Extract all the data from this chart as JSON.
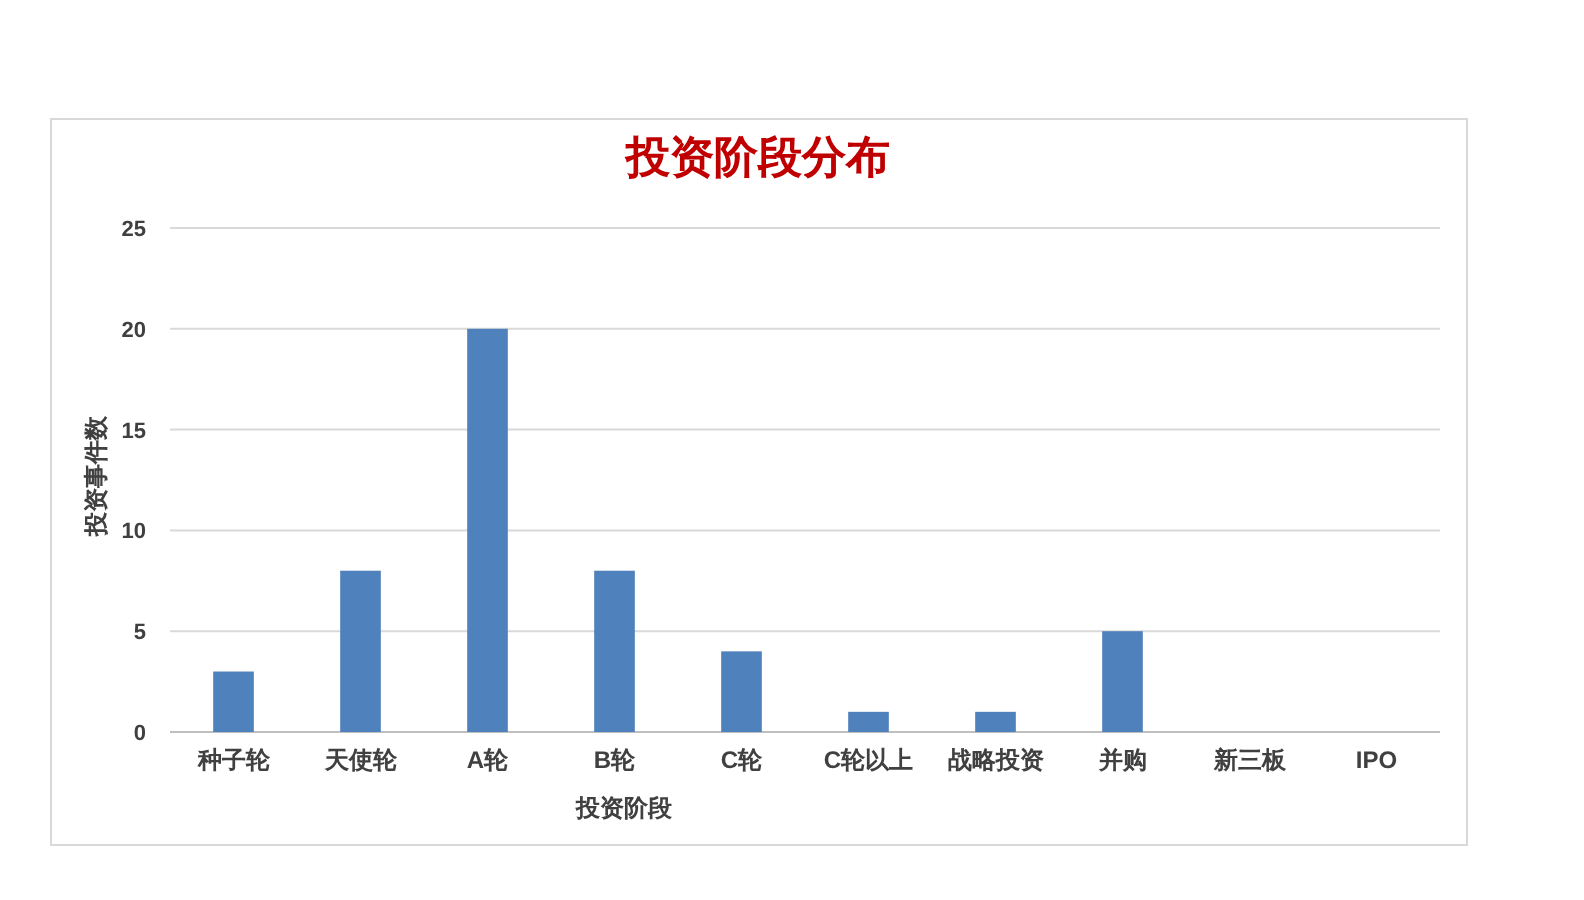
{
  "chart_data": {
    "type": "bar",
    "title": "投资阶段分布",
    "xlabel": "投资阶段",
    "ylabel": "投资事件数",
    "categories": [
      "种子轮",
      "天使轮",
      "A轮",
      "B轮",
      "C轮",
      "C轮以上",
      "战略投资",
      "并购",
      "新三板",
      "IPO"
    ],
    "values": [
      3,
      8,
      20,
      8,
      4,
      1,
      1,
      5,
      0,
      0
    ],
    "color": "#4f81bd",
    "ylim": [
      0,
      25
    ],
    "yticks": [
      0,
      5,
      10,
      15,
      20,
      25
    ],
    "grid": "y"
  }
}
